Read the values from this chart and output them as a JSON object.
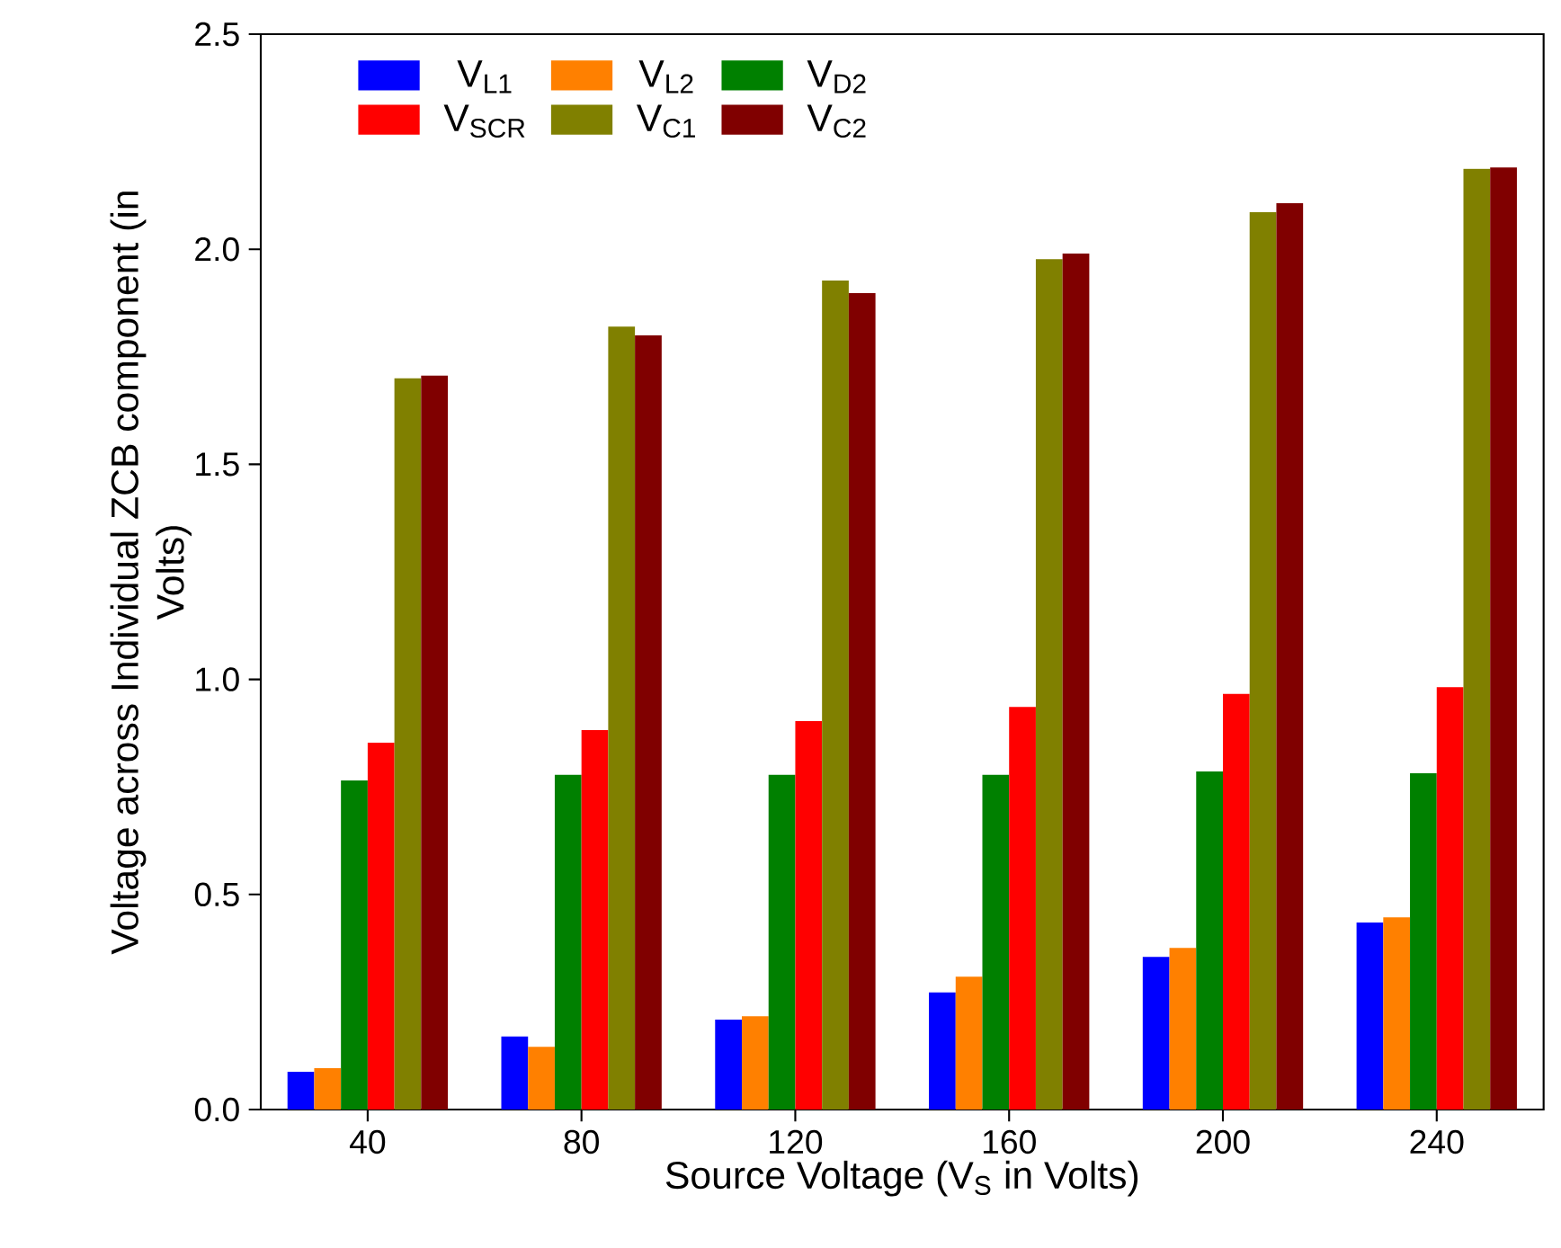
{
  "chart_data": {
    "type": "bar",
    "xlabel": "Source Voltage (V$_{S}$ in Volts)",
    "ylabel": "Voltage across Individual ZCB component (in Volts)",
    "categories": [
      "40",
      "80",
      "120",
      "160",
      "200",
      "240"
    ],
    "series": [
      {
        "name": "V$_{L1}$",
        "color": "#0000ff",
        "values": [
          0.088,
          0.17,
          0.209,
          0.272,
          0.355,
          0.435
        ]
      },
      {
        "name": "V$_{L2}$",
        "color": "#ff8000",
        "values": [
          0.096,
          0.146,
          0.217,
          0.309,
          0.376,
          0.447
        ]
      },
      {
        "name": "V$_{D2}$",
        "color": "#008000",
        "values": [
          0.765,
          0.778,
          0.778,
          0.778,
          0.786,
          0.782
        ]
      },
      {
        "name": "V$_{SCR}$",
        "color": "#ff0000",
        "values": [
          0.853,
          0.882,
          0.903,
          0.936,
          0.966,
          0.982
        ]
      },
      {
        "name": "V$_{C1}$",
        "color": "#808000",
        "values": [
          1.7,
          1.82,
          1.927,
          1.977,
          2.086,
          2.187
        ]
      },
      {
        "name": "V$_{C2}$",
        "color": "#800000",
        "values": [
          1.706,
          1.8,
          1.898,
          1.99,
          2.107,
          2.19
        ]
      }
    ],
    "ylim": [
      0,
      2.5
    ],
    "yticks": [
      {
        "value": 0,
        "label": "0.0"
      },
      {
        "value": 0.5,
        "label": "0.5"
      },
      {
        "value": 1,
        "label": "1.0"
      },
      {
        "value": 1.5,
        "label": "1.5"
      },
      {
        "value": 2,
        "label": "2.0"
      },
      {
        "value": 2.5,
        "label": "2.5"
      }
    ],
    "legend": "top left",
    "grid": false
  }
}
